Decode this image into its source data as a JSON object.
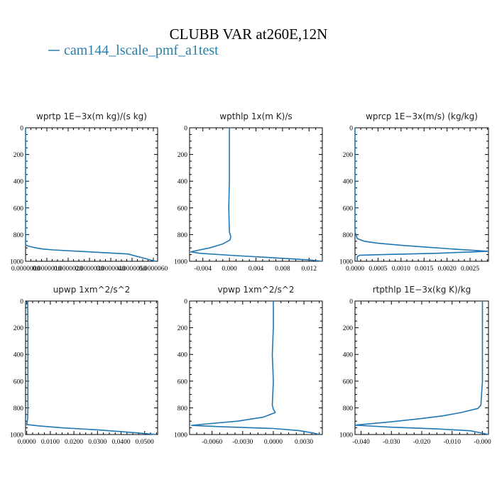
{
  "figure": {
    "title": "CLUBB VAR at260E,12N",
    "legend_label": "cam144_lscale_pmf_a1test",
    "series_color": "#1f77b4",
    "legend_color": "#2a7fa8"
  },
  "chart_data": [
    {
      "type": "line",
      "title": "wprtp  1E−3x(m kg)/(s kg)",
      "series": [
        {
          "name": "cam144_lscale_pmf_a1test",
          "x": [
            0,
            0,
            0,
            0,
            0,
            0,
            0,
            0,
            1e-07,
            3e-07,
            5e-07,
            8e-07,
            1.3e-06,
            2.5e-06,
            4.8e-06,
            6.1e-06
          ],
          "y": [
            0,
            200,
            400,
            600,
            780,
            840,
            860,
            875,
            885,
            893,
            900,
            908,
            915,
            925,
            945,
            1000
          ]
        }
      ],
      "xlim": [
        0,
        6.2e-06
      ],
      "ylim": [
        1000,
        0
      ],
      "xticks": [
        0,
        1e-06,
        2e-06,
        3e-06,
        4e-06,
        5e-06,
        6e-06
      ],
      "xticklabels": [
        "0.0000000",
        "0.0000010",
        "0.0000020",
        "0.0000030",
        "0.0000040",
        "0.0000050",
        "0.0000060"
      ],
      "yticks": [
        0,
        200,
        400,
        600,
        800,
        1000
      ],
      "yticklabels": [
        "0",
        "200",
        "400",
        "600",
        "800",
        "1000"
      ]
    },
    {
      "type": "line",
      "title": "wpthlp  1x(m K)/s",
      "series": [
        {
          "name": "cam144_lscale_pmf_a1test",
          "x": [
            0.0,
            0.0,
            0.0,
            -0.0001,
            0.0,
            0.0002,
            0.0001,
            -0.001,
            -0.003,
            -0.005,
            -0.0058,
            -0.0045,
            0.0,
            0.006,
            0.012,
            0.014
          ],
          "y": [
            0,
            200,
            400,
            600,
            780,
            815,
            840,
            870,
            900,
            920,
            930,
            940,
            955,
            972,
            990,
            1000
          ]
        }
      ],
      "xlim": [
        -0.006,
        0.014
      ],
      "ylim": [
        1000,
        0
      ],
      "xticks": [
        -0.004,
        0.0,
        0.004,
        0.008,
        0.012
      ],
      "xticklabels": [
        "-0.004",
        "0.000",
        "0.004",
        "0.008",
        "0.012"
      ],
      "yticks": [
        0,
        200,
        400,
        600,
        800,
        1000
      ],
      "yticklabels": [
        "0",
        "200",
        "400",
        "600",
        "800",
        "1000"
      ]
    },
    {
      "type": "line",
      "title": "wprcp  1E−3x(m/s) (kg/kg)",
      "series": [
        {
          "name": "cam144_lscale_pmf_a1test",
          "x": [
            0,
            0,
            0,
            0,
            0,
            5e-05,
            0.0002,
            0.0005,
            0.001,
            0.0016,
            0.0022,
            0.0029,
            0.0018,
            0.0006,
            0.0001,
            5e-05,
            5e-05
          ],
          "y": [
            0,
            200,
            400,
            600,
            780,
            830,
            850,
            865,
            880,
            895,
            910,
            925,
            940,
            950,
            955,
            965,
            1000
          ]
        }
      ],
      "xlim": [
        0,
        0.0029
      ],
      "ylim": [
        1000,
        0
      ],
      "xticks": [
        0.0,
        0.0005,
        0.001,
        0.0015,
        0.002,
        0.0025
      ],
      "xticklabels": [
        "0.0000",
        "0.0005",
        "0.0010",
        "0.0015",
        "0.0020",
        "0.0025"
      ],
      "yticks": [
        0,
        200,
        400,
        600,
        800,
        1000
      ],
      "yticklabels": [
        "0",
        "200",
        "400",
        "600",
        "800",
        "1000"
      ]
    },
    {
      "type": "line",
      "title": "upwp  1xm^2/s^2",
      "series": [
        {
          "name": "cam144_lscale_pmf_a1test",
          "x": [
            0.0004,
            0.0005,
            0.0005,
            0.0005,
            0.0005,
            0.0004,
            0.0,
            0.005,
            0.015,
            0.03,
            0.045,
            0.055
          ],
          "y": [
            0,
            200,
            400,
            600,
            800,
            880,
            925,
            935,
            950,
            965,
            985,
            1000
          ]
        }
      ],
      "xlim": [
        -0.0005,
        0.0555
      ],
      "ylim": [
        1000,
        0
      ],
      "xticks": [
        0.0,
        0.01,
        0.02,
        0.03,
        0.04,
        0.05
      ],
      "xticklabels": [
        "0.0000",
        "0.0100",
        "0.0200",
        "0.0300",
        "0.0400",
        "0.0500"
      ],
      "yticks": [
        0,
        200,
        400,
        600,
        800,
        1000
      ],
      "yticklabels": [
        "0",
        "200",
        "400",
        "600",
        "800",
        "1000"
      ]
    },
    {
      "type": "line",
      "title": "vpwp  1xm^2/s^2",
      "series": [
        {
          "name": "cam144_lscale_pmf_a1test",
          "x": [
            0.0,
            0.0,
            -0.0001,
            0.0,
            -0.0001,
            0.0,
            0.0002,
            -0.001,
            -0.0035,
            -0.0065,
            -0.008,
            -0.005,
            0.0,
            0.0025,
            0.004,
            0.0045
          ],
          "y": [
            0,
            200,
            400,
            600,
            780,
            810,
            835,
            870,
            900,
            920,
            932,
            942,
            955,
            970,
            990,
            1000
          ]
        }
      ],
      "xlim": [
        -0.0082,
        0.0048
      ],
      "ylim": [
        1000,
        0
      ],
      "xticks": [
        -0.006,
        -0.003,
        0.0,
        0.003
      ],
      "xticklabels": [
        "-0.0060",
        "-0.0030",
        "0.0000",
        "0.0030"
      ],
      "yticks": [
        0,
        200,
        400,
        600,
        800,
        1000
      ],
      "yticklabels": [
        "0",
        "200",
        "400",
        "600",
        "800",
        "1000"
      ]
    },
    {
      "type": "line",
      "title": "rtpthlp  1E−3x(kg K)/kg",
      "series": [
        {
          "name": "cam144_lscale_pmf_a1test",
          "x": [
            0.0,
            0.0,
            0.0,
            0.0,
            -0.0005,
            -0.0015,
            -0.007,
            -0.013,
            -0.02,
            -0.03,
            -0.042,
            -0.03,
            -0.015,
            -0.004,
            0.0,
            0.002
          ],
          "y": [
            0,
            200,
            400,
            600,
            780,
            805,
            835,
            860,
            880,
            905,
            930,
            945,
            958,
            972,
            990,
            1000
          ]
        }
      ],
      "xlim": [
        -0.042,
        0.002
      ],
      "ylim": [
        1000,
        0
      ],
      "xticks": [
        -0.04,
        -0.03,
        -0.02,
        -0.01,
        0.0
      ],
      "xticklabels": [
        "-0.040",
        "-0.030",
        "-0.020",
        "-0.010",
        "-0.000"
      ],
      "yticks": [
        0,
        200,
        400,
        600,
        800,
        1000
      ],
      "yticklabels": [
        "0",
        "200",
        "400",
        "600",
        "800",
        "1000"
      ]
    }
  ]
}
